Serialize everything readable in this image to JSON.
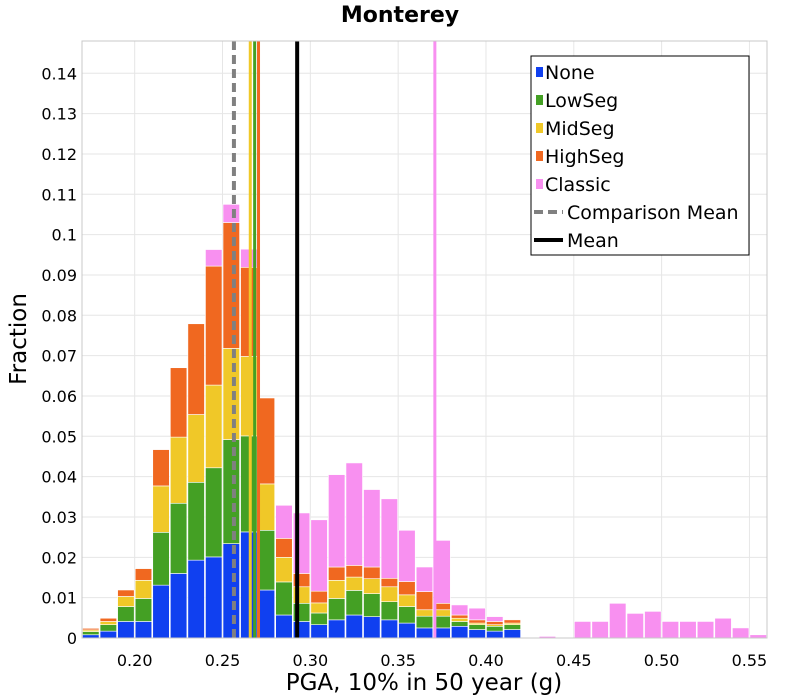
{
  "chart_data": {
    "type": "bar",
    "title": "Monterey",
    "xlabel": "PGA, 10% in 50 year (g)",
    "ylabel": "Fraction",
    "xlim": [
      0.17,
      0.56
    ],
    "ylim": [
      0,
      0.148
    ],
    "bin_width": 0.01,
    "x_ticks": [
      "0.20",
      "0.25",
      "0.30",
      "0.35",
      "0.40",
      "0.45",
      "0.50",
      "0.55"
    ],
    "y_ticks": [
      "0",
      "0.01",
      "0.02",
      "0.03",
      "0.04",
      "0.05",
      "0.06",
      "0.07",
      "0.08",
      "0.09",
      "0.1",
      "0.11",
      "0.12",
      "0.13",
      "0.14"
    ],
    "grid": true,
    "legend_position": "top-right",
    "stacked_series": [
      {
        "name": "None",
        "color": "#1040f0",
        "points": [
          [
            0.175,
            0.0008
          ],
          [
            0.185,
            0.0017
          ],
          [
            0.195,
            0.0041
          ],
          [
            0.205,
            0.0041
          ],
          [
            0.215,
            0.0131
          ],
          [
            0.225,
            0.016
          ],
          [
            0.235,
            0.0193
          ],
          [
            0.245,
            0.0201
          ],
          [
            0.255,
            0.0234
          ],
          [
            0.265,
            0.0263
          ],
          [
            0.275,
            0.0119
          ],
          [
            0.285,
            0.0057
          ],
          [
            0.295,
            0.0041
          ],
          [
            0.305,
            0.0033
          ],
          [
            0.315,
            0.0045
          ],
          [
            0.325,
            0.0057
          ],
          [
            0.335,
            0.0053
          ],
          [
            0.345,
            0.0045
          ],
          [
            0.355,
            0.0037
          ],
          [
            0.365,
            0.0025
          ],
          [
            0.375,
            0.0025
          ],
          [
            0.385,
            0.0029
          ],
          [
            0.395,
            0.0021
          ],
          [
            0.405,
            0.0017
          ],
          [
            0.415,
            0.0021
          ]
        ]
      },
      {
        "name": "LowSeg",
        "color": "#44a024",
        "points": [
          [
            0.175,
            0.0008
          ],
          [
            0.185,
            0.0016
          ],
          [
            0.195,
            0.0037
          ],
          [
            0.205,
            0.0057
          ],
          [
            0.215,
            0.0131
          ],
          [
            0.225,
            0.0174
          ],
          [
            0.235,
            0.0193
          ],
          [
            0.245,
            0.0221
          ],
          [
            0.255,
            0.0258
          ],
          [
            0.265,
            0.0238
          ],
          [
            0.275,
            0.0148
          ],
          [
            0.285,
            0.0082
          ],
          [
            0.295,
            0.0045
          ],
          [
            0.305,
            0.0029
          ],
          [
            0.315,
            0.0053
          ],
          [
            0.325,
            0.0061
          ],
          [
            0.335,
            0.0057
          ],
          [
            0.345,
            0.0045
          ],
          [
            0.355,
            0.0041
          ],
          [
            0.365,
            0.0029
          ],
          [
            0.375,
            0.0029
          ],
          [
            0.385,
            0.0012
          ],
          [
            0.395,
            0.0012
          ],
          [
            0.405,
            0.0012
          ],
          [
            0.415,
            0.0012
          ]
        ]
      },
      {
        "name": "MidSeg",
        "color": "#f0c828",
        "points": [
          [
            0.175,
            0.0004
          ],
          [
            0.185,
            0.0008
          ],
          [
            0.195,
            0.0025
          ],
          [
            0.205,
            0.0045
          ],
          [
            0.215,
            0.0115
          ],
          [
            0.225,
            0.0164
          ],
          [
            0.235,
            0.0168
          ],
          [
            0.245,
            0.0205
          ],
          [
            0.255,
            0.0226
          ],
          [
            0.265,
            0.0197
          ],
          [
            0.275,
            0.0115
          ],
          [
            0.285,
            0.0061
          ],
          [
            0.295,
            0.0041
          ],
          [
            0.305,
            0.0025
          ],
          [
            0.315,
            0.0045
          ],
          [
            0.325,
            0.0033
          ],
          [
            0.335,
            0.0037
          ],
          [
            0.345,
            0.0037
          ],
          [
            0.355,
            0.0029
          ],
          [
            0.365,
            0.0016
          ],
          [
            0.375,
            0.0016
          ],
          [
            0.385,
            0.0008
          ],
          [
            0.395,
            0.0004
          ],
          [
            0.405,
            0.0004
          ],
          [
            0.415,
            0.0004
          ]
        ]
      },
      {
        "name": "HighSeg",
        "color": "#f06820",
        "points": [
          [
            0.175,
            0.0004
          ],
          [
            0.185,
            0.0008
          ],
          [
            0.195,
            0.0016
          ],
          [
            0.205,
            0.0029
          ],
          [
            0.215,
            0.009
          ],
          [
            0.225,
            0.0172
          ],
          [
            0.235,
            0.0225
          ],
          [
            0.245,
            0.0295
          ],
          [
            0.255,
            0.0312
          ],
          [
            0.265,
            0.0221
          ],
          [
            0.275,
            0.0213
          ],
          [
            0.285,
            0.0047
          ],
          [
            0.295,
            0.0033
          ],
          [
            0.305,
            0.0029
          ],
          [
            0.315,
            0.0033
          ],
          [
            0.325,
            0.0029
          ],
          [
            0.335,
            0.0029
          ],
          [
            0.345,
            0.0021
          ],
          [
            0.355,
            0.0033
          ],
          [
            0.365,
            0.0045
          ],
          [
            0.375,
            0.0016
          ],
          [
            0.385,
            0.0008
          ],
          [
            0.395,
            0.0008
          ],
          [
            0.405,
            0.0008
          ],
          [
            0.415,
            0.0008
          ]
        ]
      },
      {
        "name": "Classic",
        "color": "#f890f0",
        "points": [
          [
            0.245,
            0.0041
          ],
          [
            0.255,
            0.0045
          ],
          [
            0.265,
            0.0045
          ],
          [
            0.285,
            0.0082
          ],
          [
            0.295,
            0.015
          ],
          [
            0.305,
            0.0177
          ],
          [
            0.315,
            0.0229
          ],
          [
            0.325,
            0.0254
          ],
          [
            0.335,
            0.0192
          ],
          [
            0.345,
            0.0197
          ],
          [
            0.355,
            0.0127
          ],
          [
            0.365,
            0.0061
          ],
          [
            0.375,
            0.0156
          ],
          [
            0.385,
            0.0025
          ],
          [
            0.395,
            0.0029
          ],
          [
            0.405,
            0.0012
          ],
          [
            0.435,
            0.0004
          ],
          [
            0.455,
            0.0041
          ],
          [
            0.465,
            0.0041
          ],
          [
            0.475,
            0.0086
          ],
          [
            0.485,
            0.0061
          ],
          [
            0.495,
            0.0066
          ],
          [
            0.505,
            0.0041
          ],
          [
            0.515,
            0.0041
          ],
          [
            0.525,
            0.0041
          ],
          [
            0.535,
            0.0049
          ],
          [
            0.545,
            0.0025
          ],
          [
            0.555,
            0.0008
          ]
        ]
      }
    ],
    "vertical_lines": [
      {
        "name": "Comparison Mean",
        "x": 0.2565,
        "color": "#808080",
        "dashed": true
      },
      {
        "name": "Mean",
        "x": 0.2925,
        "color": "#000000",
        "dashed": false
      },
      {
        "name": "MidSeg",
        "x": 0.2658,
        "color": "#f0c828",
        "dashed": false
      },
      {
        "name": "LowSeg",
        "x": 0.2683,
        "color": "#44a024",
        "dashed": false
      },
      {
        "name": "HighSeg",
        "x": 0.2705,
        "color": "#f06820",
        "dashed": false
      },
      {
        "name": "Classic",
        "x": 0.3709,
        "color": "#f890f0",
        "dashed": false
      }
    ],
    "legend": [
      {
        "label": "None",
        "type": "box",
        "color": "#1040f0"
      },
      {
        "label": "LowSeg",
        "type": "box",
        "color": "#44a024"
      },
      {
        "label": "MidSeg",
        "type": "box",
        "color": "#f0c828"
      },
      {
        "label": "HighSeg",
        "type": "box",
        "color": "#f06820"
      },
      {
        "label": "Classic",
        "type": "box",
        "color": "#f890f0"
      },
      {
        "label": "Comparison Mean",
        "type": "dashed-line",
        "color": "#808080"
      },
      {
        "label": "Mean",
        "type": "line",
        "color": "#000000"
      }
    ]
  }
}
